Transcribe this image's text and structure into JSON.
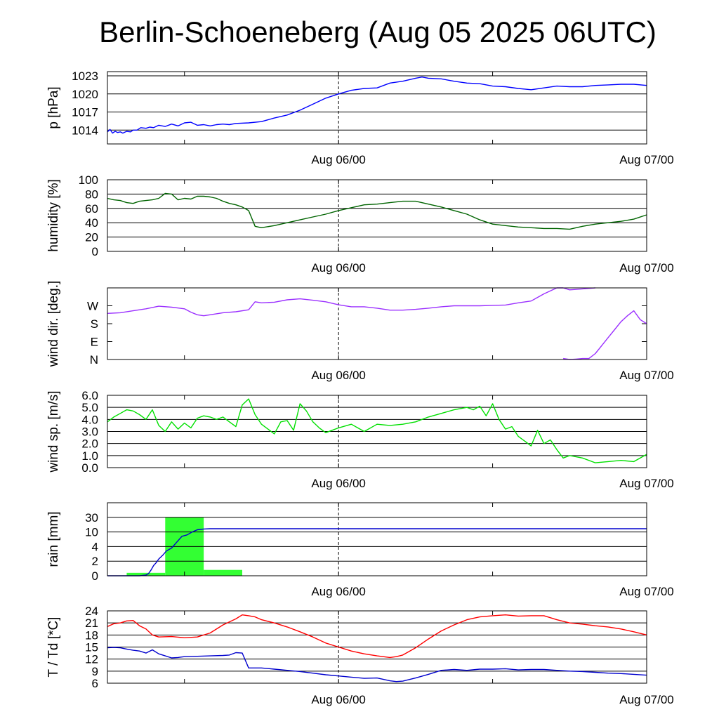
{
  "title": "Berlin-Schoeneberg (Aug 05 2025 06UTC)",
  "x_tick_labels": [
    "Aug 06/00",
    "Aug 07/00"
  ],
  "chart_data": [
    {
      "type": "line",
      "ylabel": "p [hPa]",
      "ylim": [
        1011.7,
        1023.7
      ],
      "yticks": [
        1014,
        1017,
        1020,
        1023
      ],
      "ytick_labels": [
        "1014",
        "1017",
        "1020",
        "1023"
      ],
      "grid": true,
      "xlim": [
        0,
        42
      ],
      "x_tick_hours": [
        6,
        18,
        30,
        42
      ],
      "x_tick_labels": [
        "Aug 06/00",
        "Aug 07/00"
      ],
      "x_tick_label_hours": [
        18,
        42
      ],
      "series": [
        {
          "color": "#0000ff",
          "x": [
            0,
            0.2,
            0.4,
            0.6,
            0.8,
            1,
            1.2,
            1.5,
            1.8,
            2,
            2.3,
            2.6,
            3,
            3.3,
            3.6,
            4,
            4.5,
            5,
            5.5,
            6,
            6.5,
            7,
            7.5,
            8,
            8.5,
            9,
            9.5,
            10,
            11,
            12,
            13,
            14,
            15,
            16,
            17,
            18,
            19,
            20,
            21,
            22,
            23,
            24,
            24.5,
            25,
            26,
            27,
            28,
            29,
            30,
            31,
            32,
            33,
            34,
            35,
            36,
            37,
            38,
            39,
            40,
            41,
            42
          ],
          "y": [
            1013.7,
            1014.1,
            1013.5,
            1013.8,
            1013.6,
            1013.7,
            1013.5,
            1013.8,
            1013.7,
            1014.0,
            1014.0,
            1014.4,
            1014.3,
            1014.5,
            1014.4,
            1014.8,
            1014.6,
            1015.0,
            1014.7,
            1015.2,
            1015.3,
            1014.8,
            1014.9,
            1014.7,
            1014.9,
            1015.0,
            1014.9,
            1015.1,
            1015.2,
            1015.4,
            1016.0,
            1016.5,
            1017.3,
            1018.3,
            1019.3,
            1020.0,
            1020.6,
            1020.9,
            1021.0,
            1021.8,
            1022.1,
            1022.6,
            1022.8,
            1022.6,
            1022.5,
            1022.1,
            1021.8,
            1021.7,
            1021.3,
            1021.2,
            1020.9,
            1020.7,
            1021.0,
            1021.3,
            1021.2,
            1021.2,
            1021.4,
            1021.5,
            1021.6,
            1021.6,
            1021.4
          ]
        }
      ]
    },
    {
      "type": "line",
      "ylabel": "humidity [%]",
      "ylim": [
        0,
        100
      ],
      "yticks": [
        0,
        20,
        40,
        60,
        80,
        100
      ],
      "ytick_labels": [
        "0",
        "20",
        "40",
        "60",
        "80",
        "100"
      ],
      "grid": true,
      "xlim": [
        0,
        42
      ],
      "x_tick_hours": [
        6,
        18,
        30,
        42
      ],
      "x_tick_labels": [
        "Aug 06/00",
        "Aug 07/00"
      ],
      "x_tick_label_hours": [
        18,
        42
      ],
      "series": [
        {
          "color": "#006400",
          "x": [
            0,
            0.5,
            1,
            1.5,
            2,
            2.5,
            3,
            3.5,
            4,
            4.5,
            5,
            5.5,
            6,
            6.5,
            7,
            7.5,
            8,
            8.5,
            9,
            9.5,
            10,
            10.5,
            11,
            11.5,
            12,
            13,
            14,
            15,
            16,
            17,
            18,
            19,
            20,
            21,
            22,
            23,
            24,
            25,
            26,
            27,
            28,
            29,
            30,
            31,
            32,
            33,
            34,
            35,
            36,
            37,
            38,
            39,
            40,
            41,
            42
          ],
          "y": [
            74,
            72,
            71,
            68,
            67,
            70,
            71,
            72,
            74,
            81,
            80,
            72,
            74,
            73,
            77,
            77,
            76,
            74,
            70,
            67,
            65,
            62,
            57,
            35,
            33,
            36,
            40,
            44,
            48,
            52,
            57,
            61,
            65,
            66,
            68,
            70,
            70,
            66,
            62,
            57,
            52,
            44,
            38,
            36,
            34,
            33,
            32,
            32,
            31,
            35,
            38,
            40,
            42,
            45,
            51
          ]
        }
      ]
    },
    {
      "type": "line",
      "ylabel": "wind dir. [deg.]",
      "ylim": [
        0,
        360
      ],
      "yticks": [
        0,
        90,
        180,
        270
      ],
      "ytick_labels": [
        "N",
        "E",
        "S",
        "W"
      ],
      "grid": false,
      "xlim": [
        0,
        42
      ],
      "x_tick_hours": [
        6,
        18,
        30,
        42
      ],
      "x_tick_labels": [
        "Aug 06/00",
        "Aug 07/00"
      ],
      "x_tick_label_hours": [
        18,
        42
      ],
      "series": [
        {
          "color": "#9b30ff",
          "x": [
            0,
            1,
            2,
            3,
            4,
            5,
            6,
            6.5,
            7,
            7.5,
            8,
            9,
            10,
            11,
            11.5,
            12,
            13,
            14,
            15,
            16,
            17,
            18,
            19,
            20,
            21,
            22,
            23,
            24,
            25,
            26,
            27,
            28,
            29,
            30,
            31,
            32,
            33,
            34,
            35,
            35.5,
            36,
            37,
            38
          ],
          "y": [
            232,
            235,
            245,
            255,
            268,
            263,
            255,
            238,
            225,
            220,
            225,
            235,
            240,
            250,
            290,
            285,
            288,
            300,
            305,
            298,
            290,
            275,
            265,
            265,
            258,
            248,
            248,
            252,
            258,
            265,
            270,
            270,
            270,
            272,
            274,
            285,
            294,
            330,
            360,
            360,
            350,
            355,
            360
          ]
        },
        {
          "color": "#9b30ff",
          "x": [
            35.5,
            36,
            36.5,
            37,
            37.5,
            38,
            38.5,
            39,
            39.5,
            40,
            40.5,
            41,
            41.5,
            42
          ],
          "y": [
            5,
            0,
            2,
            5,
            5,
            30,
            70,
            110,
            150,
            190,
            220,
            245,
            200,
            180
          ]
        }
      ]
    },
    {
      "type": "line",
      "ylabel": "wind sp. [m/s]",
      "ylim": [
        0,
        6
      ],
      "yticks": [
        0,
        1,
        2,
        3,
        4,
        5,
        6
      ],
      "ytick_labels": [
        "0.0",
        "1.0",
        "2.0",
        "3.0",
        "4.0",
        "5.0",
        "6.0"
      ],
      "grid": true,
      "xlim": [
        0,
        42
      ],
      "x_tick_hours": [
        6,
        18,
        30,
        42
      ],
      "x_tick_labels": [
        "Aug 06/00",
        "Aug 07/00"
      ],
      "x_tick_label_hours": [
        18,
        42
      ],
      "series": [
        {
          "color": "#00e000",
          "x": [
            0,
            0.5,
            1,
            1.5,
            2,
            2.5,
            3,
            3.5,
            4,
            4.5,
            5,
            5.5,
            6,
            6.5,
            7,
            7.5,
            8,
            8.5,
            9,
            9.5,
            10,
            10.5,
            11,
            11.5,
            12,
            12.5,
            13,
            13.5,
            14,
            14.5,
            15,
            15.5,
            16,
            16.5,
            17,
            17.5,
            18,
            19,
            20,
            21,
            22,
            23,
            24,
            25,
            26,
            27,
            28,
            28.5,
            29,
            29.5,
            30,
            30.5,
            31,
            31.5,
            32,
            32.5,
            33,
            33.5,
            34,
            34.5,
            35,
            35.5,
            36,
            37,
            38,
            39,
            40,
            41,
            42
          ],
          "y": [
            3.8,
            4.2,
            4.5,
            4.8,
            4.7,
            4.4,
            4.0,
            4.8,
            3.5,
            3.0,
            3.8,
            3.2,
            3.7,
            3.3,
            4.1,
            4.3,
            4.2,
            4.0,
            4.2,
            3.8,
            3.4,
            5.2,
            5.7,
            4.4,
            3.6,
            3.2,
            2.8,
            3.8,
            3.9,
            3.1,
            5.3,
            4.7,
            3.8,
            3.3,
            2.9,
            3.1,
            3.3,
            3.6,
            3.0,
            3.6,
            3.5,
            3.6,
            3.8,
            4.2,
            4.5,
            4.8,
            5.0,
            4.8,
            5.1,
            4.3,
            5.3,
            4.0,
            3.2,
            3.4,
            2.6,
            2.2,
            1.8,
            3.1,
            2.0,
            2.3,
            1.5,
            0.8,
            1.0,
            0.8,
            0.4,
            0.5,
            0.6,
            0.5,
            1.1
          ]
        }
      ]
    },
    {
      "type": "bar+line",
      "ylabel": "rain [mm]",
      "ylim": [
        0,
        5
      ],
      "yticks": [
        0,
        1,
        2,
        3,
        4
      ],
      "ytick_labels": [
        "0",
        "2",
        "4",
        "10",
        "30"
      ],
      "grid": true,
      "xlim": [
        0,
        42
      ],
      "x_tick_hours": [
        6,
        18,
        30,
        42
      ],
      "x_tick_labels": [
        "Aug 06/00",
        "Aug 07/00"
      ],
      "x_tick_label_hours": [
        18,
        42
      ],
      "bars": [
        {
          "x0": 1.5,
          "x1": 4.5,
          "value": 0.2,
          "color": "#33ff33"
        },
        {
          "x0": 4.5,
          "x1": 7.5,
          "value": 4,
          "color": "#33ff33"
        },
        {
          "x0": 7.5,
          "x1": 10.5,
          "value": 0.4,
          "color": "#33ff33"
        }
      ],
      "series": [
        {
          "color": "#0000cd",
          "x": [
            0,
            2.5,
            3,
            3.2,
            3.4,
            3.6,
            3.8,
            4.0,
            4.3,
            4.6,
            5.0,
            5.4,
            5.8,
            6.2,
            6.6,
            7.0,
            7.5,
            8,
            10,
            42
          ],
          "y": [
            0,
            0,
            0.05,
            0.15,
            0.4,
            0.7,
            0.9,
            1.15,
            1.4,
            1.7,
            1.9,
            2.3,
            2.7,
            2.8,
            3.0,
            3.15,
            3.2,
            3.22,
            3.22,
            3.22
          ]
        }
      ]
    },
    {
      "type": "line",
      "ylabel": "T / Td [*C]",
      "ylim": [
        6,
        24
      ],
      "yticks": [
        6,
        9,
        12,
        15,
        18,
        21,
        24
      ],
      "ytick_labels": [
        "6",
        "9",
        "12",
        "15",
        "18",
        "21",
        "24"
      ],
      "grid": true,
      "xlim": [
        0,
        42
      ],
      "x_tick_hours": [
        6,
        18,
        30,
        42
      ],
      "x_tick_labels": [
        "Aug 06/00",
        "Aug 07/00"
      ],
      "x_tick_label_hours": [
        18,
        42
      ],
      "series": [
        {
          "color": "#ff0000",
          "x": [
            0,
            0.5,
            1,
            1.5,
            2,
            2.5,
            3,
            3.5,
            4,
            5,
            6,
            7,
            8,
            9,
            10,
            10.5,
            11,
            11.5,
            12,
            13,
            14,
            15,
            16,
            17,
            18,
            19,
            20,
            21,
            22,
            22.5,
            23,
            24,
            25,
            26,
            27,
            28,
            29,
            30,
            31,
            32,
            33,
            34,
            35,
            36,
            37,
            38,
            39,
            40,
            41,
            42
          ],
          "y": [
            20.1,
            20.8,
            21.0,
            21.5,
            21.6,
            20.3,
            19.5,
            18.0,
            17.5,
            17.6,
            17.3,
            17.5,
            18.5,
            20.5,
            22.0,
            23.0,
            22.8,
            22.5,
            21.8,
            21.0,
            20.0,
            18.8,
            17.5,
            16.0,
            15.0,
            14.0,
            13.3,
            12.8,
            12.4,
            12.6,
            13.0,
            14.8,
            17.0,
            19.0,
            20.5,
            21.8,
            22.5,
            22.8,
            23.0,
            22.7,
            22.8,
            22.8,
            21.8,
            21.0,
            20.7,
            20.3,
            20.0,
            19.5,
            18.8,
            18.0
          ]
        },
        {
          "color": "#0000cd",
          "x": [
            0,
            0.5,
            1,
            1.5,
            2,
            2.5,
            3,
            3.5,
            4,
            4.5,
            5,
            5.5,
            6,
            7,
            8,
            9,
            9.5,
            10,
            10.5,
            11,
            12,
            13,
            14,
            15,
            16,
            17,
            18,
            19,
            20,
            21,
            22,
            22.5,
            23,
            24,
            25,
            26,
            27,
            28,
            29,
            30,
            31,
            32,
            33,
            34,
            35,
            36,
            37,
            38,
            39,
            40,
            41,
            42
          ],
          "y": [
            14.8,
            14.9,
            14.8,
            14.5,
            14.2,
            14.0,
            13.5,
            14.3,
            13.3,
            12.8,
            12.3,
            12.4,
            12.6,
            12.7,
            12.8,
            12.9,
            13.0,
            13.6,
            13.5,
            9.8,
            9.8,
            9.5,
            9.2,
            8.9,
            8.5,
            8.1,
            7.8,
            7.5,
            7.2,
            7.3,
            6.6,
            6.4,
            6.5,
            7.3,
            8.2,
            9.2,
            9.4,
            9.2,
            9.5,
            9.5,
            9.6,
            9.3,
            9.4,
            9.4,
            9.2,
            9.0,
            8.9,
            8.7,
            8.5,
            8.4,
            8.2,
            8.0
          ]
        }
      ]
    }
  ]
}
